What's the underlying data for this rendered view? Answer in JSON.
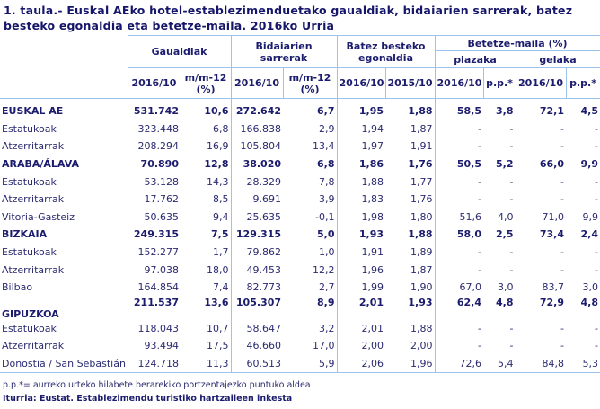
{
  "title": "1. taula.- Euskal AEko hotel-establezimenduetako gaualdiak, bidaiarien sarrerak, batez besteko egonaldia eta betetze-maila. 2016ko Urria",
  "headers": {
    "gaualdiak": "Gaualdiak",
    "bidaiarien": "Bidaiarien sarrerak",
    "batez": "Batez besteko egonaldia",
    "betetze": "Betetze-maila (%)",
    "plazaka": "plazaka",
    "gelaka": "gelaka",
    "sub": [
      "2016/10",
      "m/m-12 (%)",
      "2016/10",
      "m/m-12 (%)",
      "2016/10",
      "2015/10",
      "2016/10",
      "p.p.*",
      "2016/10",
      "p.p.*"
    ]
  },
  "rows": [
    {
      "label": "EUSKAL AE",
      "bold": true,
      "v": [
        "531.742",
        "10,6",
        "272.642",
        "6,7",
        "1,95",
        "1,88",
        "58,5",
        "3,8",
        "72,1",
        "4,5"
      ]
    },
    {
      "label": "Estatukoak",
      "v": [
        "323.448",
        "6,8",
        "166.838",
        "2,9",
        "1,94",
        "1,87",
        "-",
        "-",
        "-",
        "-"
      ]
    },
    {
      "label": "Atzerritarrak",
      "v": [
        "208.294",
        "16,9",
        "105.804",
        "13,4",
        "1,97",
        "1,91",
        "-",
        "-",
        "-",
        "-"
      ]
    },
    {
      "label": "ARABA/ÁLAVA",
      "bold": true,
      "v": [
        "70.890",
        "12,8",
        "38.020",
        "6,8",
        "1,86",
        "1,76",
        "50,5",
        "5,2",
        "66,0",
        "9,9"
      ]
    },
    {
      "label": "Estatukoak",
      "v": [
        "53.128",
        "14,3",
        "28.329",
        "7,8",
        "1,88",
        "1,77",
        "-",
        "-",
        "-",
        "-"
      ]
    },
    {
      "label": "Atzerritarrak",
      "v": [
        "17.762",
        "8,5",
        "9.691",
        "3,9",
        "1,83",
        "1,76",
        "-",
        "-",
        "-",
        "-"
      ]
    },
    {
      "label": "Vitoria-Gasteiz",
      "v": [
        "50.635",
        "9,4",
        "25.635",
        "-0,1",
        "1,98",
        "1,80",
        "51,6",
        "4,0",
        "71,0",
        "9,9"
      ]
    },
    {
      "label": "BIZKAIA",
      "bold": true,
      "v": [
        "249.315",
        "7,5",
        "129.315",
        "5,0",
        "1,93",
        "1,88",
        "58,0",
        "2,5",
        "73,4",
        "2,4"
      ]
    },
    {
      "label": "Estatukoak",
      "v": [
        "152.277",
        "1,7",
        "79.862",
        "1,0",
        "1,91",
        "1,89",
        "-",
        "-",
        "-",
        "-"
      ]
    },
    {
      "label": "Atzerritarrak",
      "v": [
        "97.038",
        "18,0",
        "49.453",
        "12,2",
        "1,96",
        "1,87",
        "-",
        "-",
        "-",
        "-"
      ]
    },
    {
      "label": "Bilbao",
      "v": [
        "164.854",
        "7,4",
        "82.773",
        "2,7",
        "1,99",
        "1,90",
        "67,0",
        "3,0",
        "83,7",
        "3,0"
      ]
    },
    {
      "label": "GIPUZKOA",
      "bold": true,
      "v": [
        "211.537",
        "13,6",
        "105.307",
        "8,9",
        "2,01",
        "1,93",
        "62,4",
        "4,8",
        "72,9",
        "4,8"
      ]
    },
    {
      "label": "Estatukoak",
      "v": [
        "118.043",
        "10,7",
        "58.647",
        "3,2",
        "2,01",
        "1,88",
        "-",
        "-",
        "-",
        "-"
      ]
    },
    {
      "label": "Atzerritarrak",
      "v": [
        "93.494",
        "17,5",
        "46.660",
        "17,0",
        "2,00",
        "2,00",
        "-",
        "-",
        "-",
        "-"
      ]
    },
    {
      "label": "Donostia / San Sebastián",
      "v": [
        "124.718",
        "11,3",
        "60.513",
        "5,9",
        "2,06",
        "1,96",
        "72,6",
        "5,4",
        "84,8",
        "5,3"
      ]
    }
  ],
  "footnote": "p.p.*= aurreko urteko hilabete berarekiko portzentajezko puntuko aldea",
  "source": "Iturria: Eustat. Establezimendu turistiko hartzaileen inkesta"
}
